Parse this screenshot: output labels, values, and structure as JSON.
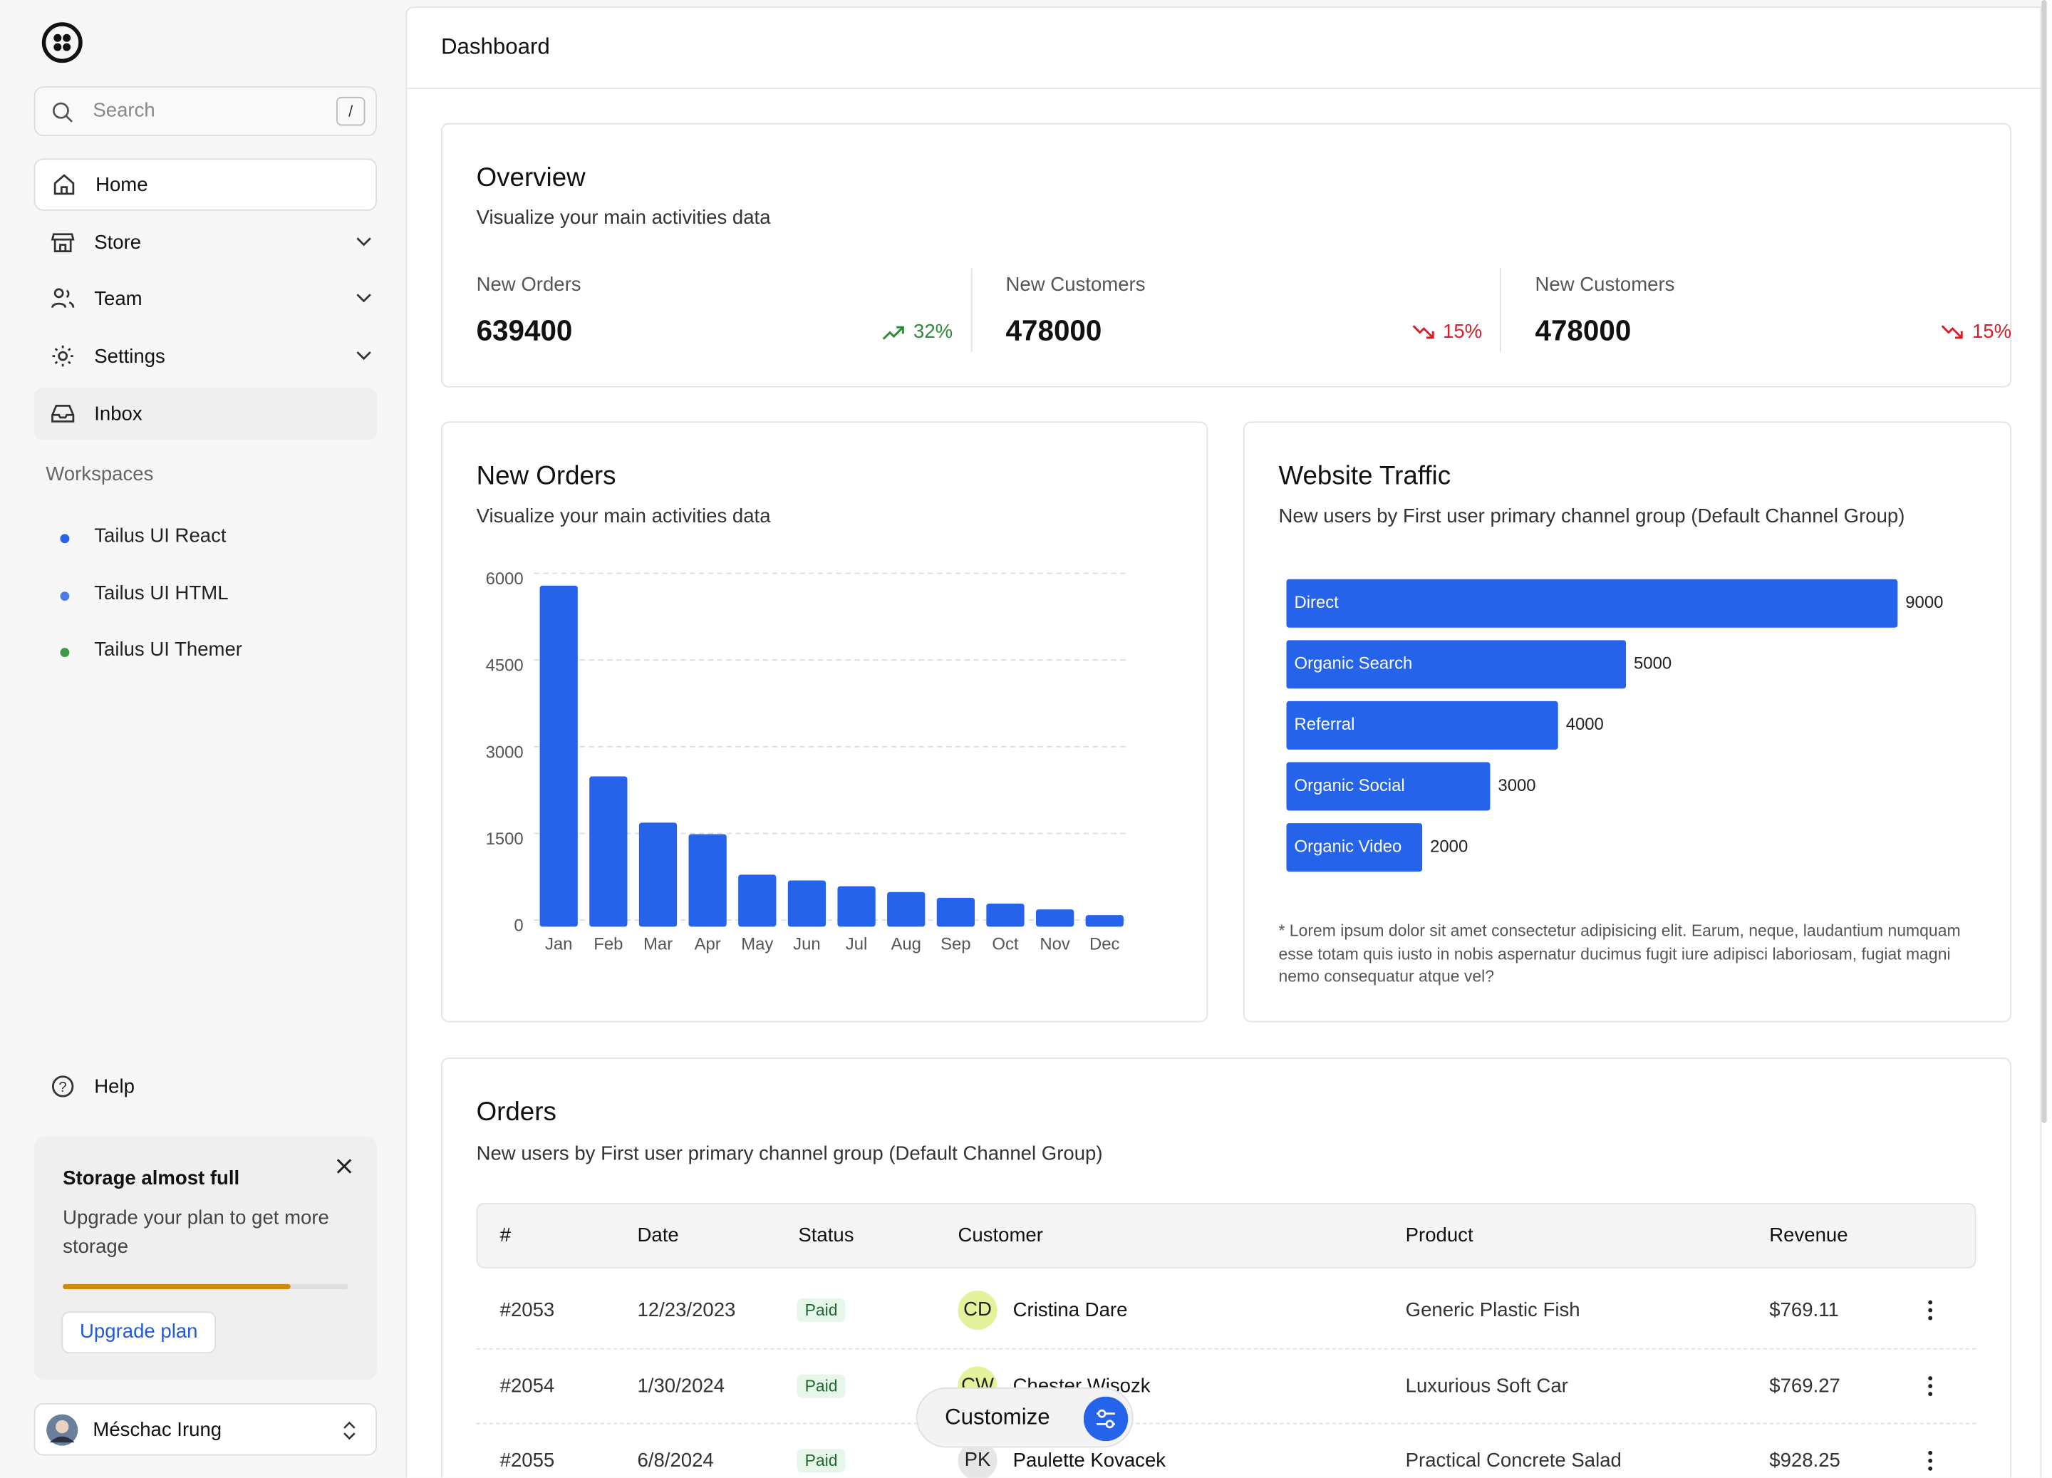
{
  "sidebar": {
    "search": {
      "placeholder": "Search",
      "shortcut": "/"
    },
    "nav": [
      "Home",
      "Store",
      "Team",
      "Settings",
      "Inbox"
    ],
    "workspaces_title": "Workspaces",
    "workspaces": [
      {
        "name": "Tailus UI React",
        "color": "#2563eb"
      },
      {
        "name": "Tailus UI HTML",
        "color": "#4b7be5"
      },
      {
        "name": "Tailus UI Themer",
        "color": "#3a9a4a"
      }
    ],
    "help": "Help",
    "storage": {
      "title": "Storage almost full",
      "text": "Upgrade your plan to get more storage",
      "progress": 80,
      "button": "Upgrade plan"
    },
    "user": "Méschac Irung"
  },
  "header": {
    "title": "Dashboard"
  },
  "overview": {
    "title": "Overview",
    "subtitle": "Visualize your main activities data",
    "stats": [
      {
        "label": "New Orders",
        "value": "639400",
        "change": "32%",
        "trend": "up"
      },
      {
        "label": "New Customers",
        "value": "478000",
        "change": "15%",
        "trend": "down"
      },
      {
        "label": "New Customers",
        "value": "478000",
        "change": "15%",
        "trend": "down"
      }
    ]
  },
  "new_orders": {
    "type": "bar",
    "title": "New Orders",
    "subtitle": "Visualize your main activities data",
    "categories": [
      "Jan",
      "Feb",
      "Mar",
      "Apr",
      "May",
      "Jun",
      "Jul",
      "Aug",
      "Sep",
      "Oct",
      "Nov",
      "Dec"
    ],
    "values": [
      5900,
      2600,
      1800,
      1600,
      900,
      800,
      700,
      600,
      500,
      400,
      300,
      200
    ],
    "color": "#2563eb",
    "ylim": [
      0,
      6000
    ],
    "yticks": [
      0,
      1500,
      3000,
      4500,
      6000
    ],
    "grid": true
  },
  "website_traffic": {
    "type": "hbar",
    "title": "Website Traffic",
    "subtitle": "New users by First user primary channel group (Default Channel Group)",
    "categories": [
      "Direct",
      "Organic Search",
      "Referral",
      "Organic Social",
      "Organic Video"
    ],
    "values": [
      9000,
      5000,
      4000,
      3000,
      2000
    ],
    "color": "#2563eb",
    "note": "* Lorem ipsum dolor sit amet consectetur adipisicing elit. Earum, neque, laudantium numquam esse totam quis iusto in nobis aspernatur ducimus fugit iure adipisci laboriosam, fugiat magni nemo consequatur atque vel?"
  },
  "orders": {
    "title": "Orders",
    "subtitle": "New users by First user primary channel group (Default Channel Group)",
    "columns": [
      "#",
      "Date",
      "Status",
      "Customer",
      "Product",
      "Revenue"
    ],
    "rows": [
      {
        "id": "#2053",
        "date": "12/23/2023",
        "status": "Paid",
        "initials": "CD",
        "avatar": "#e6f19c",
        "customer": "Cristina Dare",
        "product": "Generic Plastic Fish",
        "revenue": "$769.11"
      },
      {
        "id": "#2054",
        "date": "1/30/2024",
        "status": "Paid",
        "initials": "CW",
        "avatar": "#e6f19c",
        "customer": "Chester Wisozk",
        "product": "Luxurious Soft Car",
        "revenue": "$769.27"
      },
      {
        "id": "#2055",
        "date": "6/8/2024",
        "status": "Paid",
        "initials": "PK",
        "avatar": "#e6e6e6",
        "customer": "Paulette Kovacek",
        "product": "Practical Concrete Salad",
        "revenue": "$928.25"
      }
    ]
  },
  "customize": "Customize"
}
